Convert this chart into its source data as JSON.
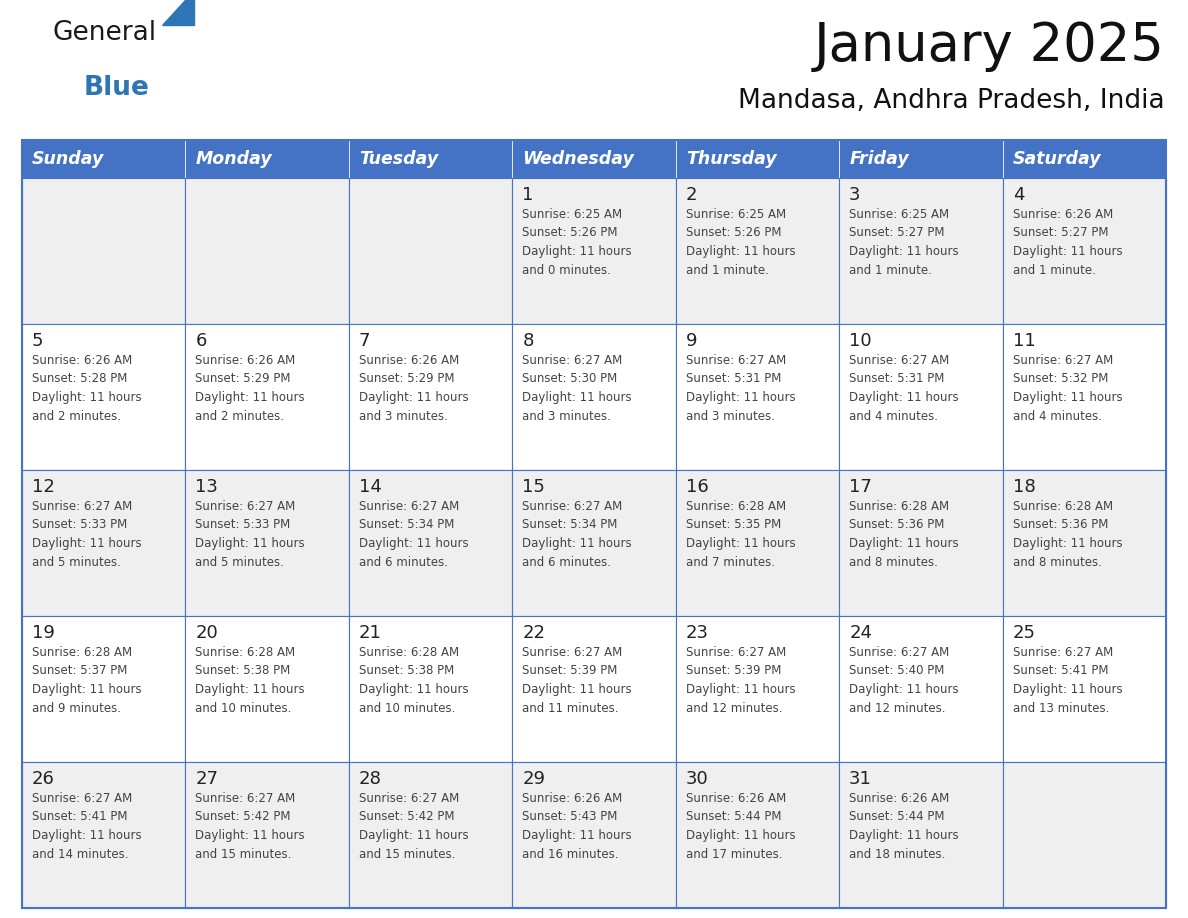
{
  "title": "January 2025",
  "subtitle": "Mandasa, Andhra Pradesh, India",
  "header_bg_color": "#4472C4",
  "header_text_color": "#FFFFFF",
  "day_names": [
    "Sunday",
    "Monday",
    "Tuesday",
    "Wednesday",
    "Thursday",
    "Friday",
    "Saturday"
  ],
  "row_bg_even": "#EFEFEF",
  "row_bg_odd": "#FFFFFF",
  "cell_border_color": "#4472C4",
  "day_number_color": "#222222",
  "cell_text_color": "#444444",
  "title_color": "#111111",
  "subtitle_color": "#111111",
  "logo_general_color": "#1a1a1a",
  "logo_blue_color": "#2E75B6",
  "calendar_data": [
    [
      {
        "day": null,
        "text": ""
      },
      {
        "day": null,
        "text": ""
      },
      {
        "day": null,
        "text": ""
      },
      {
        "day": 1,
        "text": "Sunrise: 6:25 AM\nSunset: 5:26 PM\nDaylight: 11 hours\nand 0 minutes."
      },
      {
        "day": 2,
        "text": "Sunrise: 6:25 AM\nSunset: 5:26 PM\nDaylight: 11 hours\nand 1 minute."
      },
      {
        "day": 3,
        "text": "Sunrise: 6:25 AM\nSunset: 5:27 PM\nDaylight: 11 hours\nand 1 minute."
      },
      {
        "day": 4,
        "text": "Sunrise: 6:26 AM\nSunset: 5:27 PM\nDaylight: 11 hours\nand 1 minute."
      }
    ],
    [
      {
        "day": 5,
        "text": "Sunrise: 6:26 AM\nSunset: 5:28 PM\nDaylight: 11 hours\nand 2 minutes."
      },
      {
        "day": 6,
        "text": "Sunrise: 6:26 AM\nSunset: 5:29 PM\nDaylight: 11 hours\nand 2 minutes."
      },
      {
        "day": 7,
        "text": "Sunrise: 6:26 AM\nSunset: 5:29 PM\nDaylight: 11 hours\nand 3 minutes."
      },
      {
        "day": 8,
        "text": "Sunrise: 6:27 AM\nSunset: 5:30 PM\nDaylight: 11 hours\nand 3 minutes."
      },
      {
        "day": 9,
        "text": "Sunrise: 6:27 AM\nSunset: 5:31 PM\nDaylight: 11 hours\nand 3 minutes."
      },
      {
        "day": 10,
        "text": "Sunrise: 6:27 AM\nSunset: 5:31 PM\nDaylight: 11 hours\nand 4 minutes."
      },
      {
        "day": 11,
        "text": "Sunrise: 6:27 AM\nSunset: 5:32 PM\nDaylight: 11 hours\nand 4 minutes."
      }
    ],
    [
      {
        "day": 12,
        "text": "Sunrise: 6:27 AM\nSunset: 5:33 PM\nDaylight: 11 hours\nand 5 minutes."
      },
      {
        "day": 13,
        "text": "Sunrise: 6:27 AM\nSunset: 5:33 PM\nDaylight: 11 hours\nand 5 minutes."
      },
      {
        "day": 14,
        "text": "Sunrise: 6:27 AM\nSunset: 5:34 PM\nDaylight: 11 hours\nand 6 minutes."
      },
      {
        "day": 15,
        "text": "Sunrise: 6:27 AM\nSunset: 5:34 PM\nDaylight: 11 hours\nand 6 minutes."
      },
      {
        "day": 16,
        "text": "Sunrise: 6:28 AM\nSunset: 5:35 PM\nDaylight: 11 hours\nand 7 minutes."
      },
      {
        "day": 17,
        "text": "Sunrise: 6:28 AM\nSunset: 5:36 PM\nDaylight: 11 hours\nand 8 minutes."
      },
      {
        "day": 18,
        "text": "Sunrise: 6:28 AM\nSunset: 5:36 PM\nDaylight: 11 hours\nand 8 minutes."
      }
    ],
    [
      {
        "day": 19,
        "text": "Sunrise: 6:28 AM\nSunset: 5:37 PM\nDaylight: 11 hours\nand 9 minutes."
      },
      {
        "day": 20,
        "text": "Sunrise: 6:28 AM\nSunset: 5:38 PM\nDaylight: 11 hours\nand 10 minutes."
      },
      {
        "day": 21,
        "text": "Sunrise: 6:28 AM\nSunset: 5:38 PM\nDaylight: 11 hours\nand 10 minutes."
      },
      {
        "day": 22,
        "text": "Sunrise: 6:27 AM\nSunset: 5:39 PM\nDaylight: 11 hours\nand 11 minutes."
      },
      {
        "day": 23,
        "text": "Sunrise: 6:27 AM\nSunset: 5:39 PM\nDaylight: 11 hours\nand 12 minutes."
      },
      {
        "day": 24,
        "text": "Sunrise: 6:27 AM\nSunset: 5:40 PM\nDaylight: 11 hours\nand 12 minutes."
      },
      {
        "day": 25,
        "text": "Sunrise: 6:27 AM\nSunset: 5:41 PM\nDaylight: 11 hours\nand 13 minutes."
      }
    ],
    [
      {
        "day": 26,
        "text": "Sunrise: 6:27 AM\nSunset: 5:41 PM\nDaylight: 11 hours\nand 14 minutes."
      },
      {
        "day": 27,
        "text": "Sunrise: 6:27 AM\nSunset: 5:42 PM\nDaylight: 11 hours\nand 15 minutes."
      },
      {
        "day": 28,
        "text": "Sunrise: 6:27 AM\nSunset: 5:42 PM\nDaylight: 11 hours\nand 15 minutes."
      },
      {
        "day": 29,
        "text": "Sunrise: 6:26 AM\nSunset: 5:43 PM\nDaylight: 11 hours\nand 16 minutes."
      },
      {
        "day": 30,
        "text": "Sunrise: 6:26 AM\nSunset: 5:44 PM\nDaylight: 11 hours\nand 17 minutes."
      },
      {
        "day": 31,
        "text": "Sunrise: 6:26 AM\nSunset: 5:44 PM\nDaylight: 11 hours\nand 18 minutes."
      },
      {
        "day": null,
        "text": ""
      }
    ]
  ]
}
